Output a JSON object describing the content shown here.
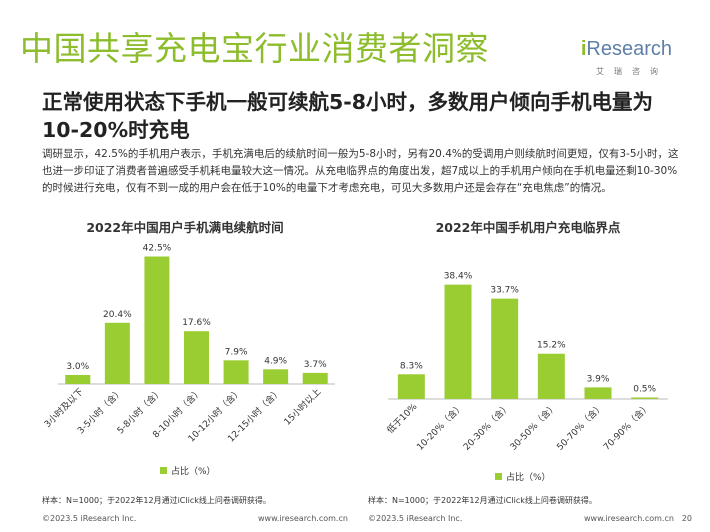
{
  "title": "中国共享充电宝行业消费者洞察",
  "logo": {
    "brand_i": "i",
    "brand_rest": "Research",
    "sub": "艾瑞咨询"
  },
  "subtitle": "正常使用状态下手机一般可续航5-8小时，多数用户倾向手机电量为10-20%时充电",
  "body": "调研显示，42.5%的手机用户表示，手机充满电后的续航时间一般为5-8小时，另有20.4%的受调用户则续航时间更短，仅有3-5小时，这也进一步印证了消费者普遍感受手机耗电量较大这一情况。从充电临界点的角度出发，超7成以上的手机用户倾向在手机电量还剩10-30%的时候进行充电，仅有不到一成的用户会在低于10%的电量下才考虑充电，可见大多数用户还是会存在“充电焦虑”的情况。",
  "colors": {
    "accent": "#8dbd2d",
    "bar": "#9acd32",
    "logo_blue": "#5d7fa8"
  },
  "chart_data": [
    {
      "type": "bar",
      "title": "2022年中国用户手机满电续航时间",
      "categories": [
        "3小时及以下",
        "3-5小时（含）",
        "5-8小时（含）",
        "8-10小时（含）",
        "10-12小时（含）",
        "12-15小时（含）",
        "15小时以上"
      ],
      "values": [
        3.0,
        20.4,
        42.5,
        17.6,
        7.9,
        4.9,
        3.7
      ],
      "value_labels": [
        "3.0%",
        "20.4%",
        "42.5%",
        "17.6%",
        "7.9%",
        "4.9%",
        "3.7%"
      ],
      "legend": "占比（%）",
      "ylim": [
        0,
        45
      ]
    },
    {
      "type": "bar",
      "title": "2022年中国手机用户充电临界点",
      "categories": [
        "低于10%",
        "10-20%（含）",
        "20-30%（含）",
        "30-50%（含）",
        "50-70%（含）",
        "70-90%（含）"
      ],
      "values": [
        8.3,
        38.4,
        33.7,
        15.2,
        3.9,
        0.5
      ],
      "value_labels": [
        "8.3%",
        "38.4%",
        "33.7%",
        "15.2%",
        "3.9%",
        "0.5%"
      ],
      "legend": "占比（%）",
      "ylim": [
        0,
        45
      ]
    }
  ],
  "notes": [
    "样本：N=1000；于2022年12月通过iClick线上问卷调研获得。",
    "样本：N=1000；于2022年12月通过iClick线上问卷调研获得。"
  ],
  "footer": {
    "left_copyright": "©2023.5 iResearch Inc.",
    "left_url": "www.iresearch.com.cn",
    "right_copyright": "©2023.5 iResearch Inc.",
    "right_url": "www.iresearch.com.cn",
    "page": "20"
  }
}
